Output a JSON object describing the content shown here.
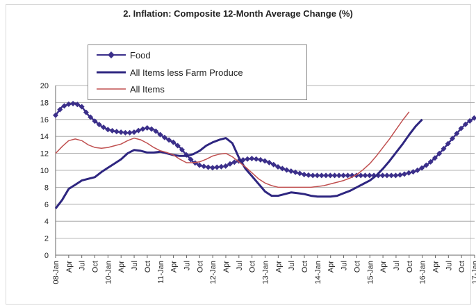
{
  "chart_data": {
    "type": "line",
    "title": "2. Inflation: Composite 12-Month Average Change (%)",
    "xlabel": "",
    "ylabel": "",
    "ylim": [
      0,
      20
    ],
    "yticks": [
      0,
      2,
      4,
      6,
      8,
      10,
      12,
      14,
      16,
      18,
      20
    ],
    "grid": "horizontal",
    "legend_position": "top-left",
    "x_tick_labels": [
      "08-Jan",
      "Apr",
      "Jul",
      "Oct",
      "10-Jan",
      "Apr",
      "Jul",
      "Oct",
      "11-Jan",
      "Apr",
      "Jul",
      "Oct",
      "12-Jan",
      "Apr",
      "Jul",
      "Oct",
      "13-Jan",
      "Apr",
      "Jul",
      "Oct",
      "14-Jan",
      "Apr",
      "Jul",
      "Oct",
      "15-Jan",
      "Apr",
      "Jul",
      "Oct",
      "16-Jan",
      "Apr",
      "Jul",
      "Oct",
      "17-Jan"
    ],
    "series": [
      {
        "name": "Food",
        "color": "#3b2f8a",
        "marker": "diamond",
        "points": [
          [
            0,
            16.5
          ],
          [
            0.5,
            17.5
          ],
          [
            1,
            17.8
          ],
          [
            1.5,
            17.9
          ],
          [
            2,
            17.5
          ],
          [
            2.5,
            16.5
          ],
          [
            3,
            15.8
          ],
          [
            3.5,
            15.2
          ],
          [
            4,
            14.8
          ],
          [
            4.5,
            14.6
          ],
          [
            5,
            14.5
          ],
          [
            5.5,
            14.4
          ],
          [
            6,
            14.5
          ],
          [
            6.5,
            14.8
          ],
          [
            7,
            15.0
          ],
          [
            7.5,
            14.8
          ],
          [
            8,
            14.2
          ],
          [
            8.5,
            13.7
          ],
          [
            9,
            13.3
          ],
          [
            9.5,
            12.7
          ],
          [
            10,
            11.8
          ],
          [
            10.5,
            11.0
          ],
          [
            11,
            10.6
          ],
          [
            11.5,
            10.4
          ],
          [
            12,
            10.3
          ],
          [
            12.5,
            10.4
          ],
          [
            13,
            10.5
          ],
          [
            13.5,
            10.9
          ],
          [
            14,
            11.1
          ],
          [
            14.5,
            11.3
          ],
          [
            15,
            11.4
          ],
          [
            15.5,
            11.3
          ],
          [
            16,
            11.1
          ],
          [
            16.5,
            10.8
          ],
          [
            17,
            10.4
          ],
          [
            17.5,
            10.1
          ],
          [
            18,
            9.9
          ],
          [
            18.5,
            9.7
          ],
          [
            19,
            9.5
          ],
          [
            19.5,
            9.4
          ],
          [
            20,
            9.4
          ],
          [
            21,
            9.4
          ],
          [
            22,
            9.4
          ],
          [
            23,
            9.4
          ],
          [
            24,
            9.4
          ],
          [
            25,
            9.4
          ],
          [
            26,
            9.4
          ],
          [
            26.5,
            9.5
          ],
          [
            27,
            9.7
          ],
          [
            27.5,
            9.9
          ],
          [
            28,
            10.3
          ],
          [
            28.5,
            10.8
          ],
          [
            29,
            11.5
          ],
          [
            29.5,
            12.3
          ],
          [
            30,
            13.2
          ],
          [
            30.5,
            14.1
          ],
          [
            31,
            15.0
          ],
          [
            31.5,
            15.7
          ],
          [
            32,
            16.2
          ]
        ]
      },
      {
        "name": "All Items less Farm Produce",
        "color": "#2e2680",
        "marker": "none",
        "points": [
          [
            0,
            5.5
          ],
          [
            0.5,
            6.5
          ],
          [
            1,
            7.8
          ],
          [
            1.5,
            8.3
          ],
          [
            2,
            8.8
          ],
          [
            2.5,
            9.0
          ],
          [
            3,
            9.2
          ],
          [
            3.5,
            9.8
          ],
          [
            4,
            10.3
          ],
          [
            4.5,
            10.8
          ],
          [
            5,
            11.3
          ],
          [
            5.5,
            12.0
          ],
          [
            6,
            12.4
          ],
          [
            6.5,
            12.3
          ],
          [
            7,
            12.1
          ],
          [
            7.5,
            12.1
          ],
          [
            8,
            12.2
          ],
          [
            8.5,
            12.0
          ],
          [
            9,
            11.8
          ],
          [
            9.5,
            11.7
          ],
          [
            10,
            11.7
          ],
          [
            10.5,
            11.9
          ],
          [
            11,
            12.3
          ],
          [
            11.5,
            12.9
          ],
          [
            12,
            13.3
          ],
          [
            12.5,
            13.6
          ],
          [
            13,
            13.8
          ],
          [
            13.5,
            13.2
          ],
          [
            14,
            11.5
          ],
          [
            14.5,
            10.2
          ],
          [
            15,
            9.3
          ],
          [
            15.5,
            8.4
          ],
          [
            16,
            7.5
          ],
          [
            16.5,
            7.0
          ],
          [
            17,
            7.0
          ],
          [
            17.5,
            7.2
          ],
          [
            18,
            7.4
          ],
          [
            18.5,
            7.3
          ],
          [
            19,
            7.2
          ],
          [
            19.5,
            7.0
          ],
          [
            20,
            6.9
          ],
          [
            21,
            6.9
          ],
          [
            21.5,
            7.0
          ],
          [
            22,
            7.3
          ],
          [
            22.5,
            7.6
          ],
          [
            23,
            8.0
          ],
          [
            23.5,
            8.4
          ],
          [
            24,
            8.8
          ],
          [
            24.5,
            9.4
          ],
          [
            25,
            10.2
          ],
          [
            25.5,
            11.1
          ],
          [
            26,
            12.1
          ],
          [
            26.5,
            13.1
          ],
          [
            27,
            14.2
          ],
          [
            27.5,
            15.2
          ],
          [
            28,
            16.0
          ]
        ]
      },
      {
        "name": "All Items",
        "color": "#c05050",
        "marker": "none",
        "points": [
          [
            0,
            12.0
          ],
          [
            0.5,
            12.8
          ],
          [
            1,
            13.5
          ],
          [
            1.5,
            13.7
          ],
          [
            2,
            13.5
          ],
          [
            2.5,
            13.0
          ],
          [
            3,
            12.7
          ],
          [
            3.5,
            12.6
          ],
          [
            4,
            12.7
          ],
          [
            4.5,
            12.9
          ],
          [
            5,
            13.1
          ],
          [
            5.5,
            13.5
          ],
          [
            6,
            13.8
          ],
          [
            6.5,
            13.6
          ],
          [
            7,
            13.2
          ],
          [
            7.5,
            12.7
          ],
          [
            8,
            12.3
          ],
          [
            8.5,
            12.1
          ],
          [
            9,
            11.8
          ],
          [
            9.5,
            11.3
          ],
          [
            10,
            10.9
          ],
          [
            10.5,
            10.9
          ],
          [
            11,
            11.0
          ],
          [
            11.5,
            11.3
          ],
          [
            12,
            11.7
          ],
          [
            12.5,
            11.9
          ],
          [
            13,
            12.0
          ],
          [
            13.5,
            11.6
          ],
          [
            14,
            11.0
          ],
          [
            14.5,
            10.4
          ],
          [
            15,
            9.7
          ],
          [
            15.5,
            9.0
          ],
          [
            16,
            8.5
          ],
          [
            16.5,
            8.2
          ],
          [
            17,
            8.0
          ],
          [
            17.5,
            8.0
          ],
          [
            18,
            8.0
          ],
          [
            18.5,
            8.0
          ],
          [
            19,
            8.0
          ],
          [
            19.5,
            8.0
          ],
          [
            20,
            8.1
          ],
          [
            20.5,
            8.2
          ],
          [
            21,
            8.4
          ],
          [
            21.5,
            8.6
          ],
          [
            22,
            8.8
          ],
          [
            22.5,
            9.1
          ],
          [
            23,
            9.5
          ],
          [
            23.5,
            10.1
          ],
          [
            24,
            10.8
          ],
          [
            24.5,
            11.7
          ],
          [
            25,
            12.7
          ],
          [
            25.5,
            13.7
          ],
          [
            26,
            14.8
          ],
          [
            26.5,
            15.9
          ],
          [
            27,
            16.9
          ]
        ]
      }
    ]
  }
}
